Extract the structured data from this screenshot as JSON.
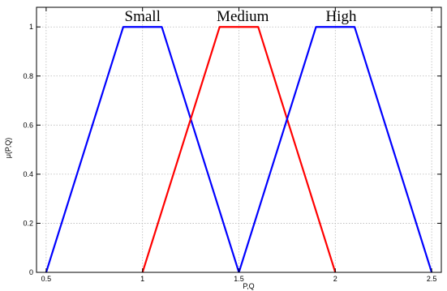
{
  "chart_data": {
    "type": "line",
    "title": "",
    "xlabel": "P,Q",
    "ylabel": "μ(P,Q)",
    "xlim": [
      0.45,
      2.55
    ],
    "ylim": [
      0,
      1.08
    ],
    "xticks": [
      0.5,
      1,
      1.5,
      2,
      2.5
    ],
    "xtick_labels": [
      "0.5",
      "1",
      "1.5",
      "2",
      "2.5"
    ],
    "yticks": [
      0,
      0.2,
      0.4,
      0.6,
      0.8,
      1
    ],
    "ytick_labels": [
      "0",
      "0.2",
      "0.4",
      "0.6",
      "0.8",
      "1"
    ],
    "grid": true,
    "series": [
      {
        "name": "Small",
        "color": "#0000ff",
        "x": [
          0.5,
          0.9,
          1.1,
          1.5
        ],
        "y": [
          0,
          1,
          1,
          0
        ]
      },
      {
        "name": "Medium",
        "color": "#ff0000",
        "x": [
          1.0,
          1.4,
          1.6,
          2.0
        ],
        "y": [
          0,
          1,
          1,
          0
        ]
      },
      {
        "name": "High",
        "color": "#0000ff",
        "x": [
          1.5,
          1.9,
          2.1,
          2.5
        ],
        "y": [
          0,
          1,
          1,
          0
        ]
      }
    ],
    "annotations": [
      {
        "text": "Small",
        "x": 1.0
      },
      {
        "text": "Medium",
        "x": 1.52
      },
      {
        "text": "High",
        "x": 2.03
      }
    ]
  }
}
